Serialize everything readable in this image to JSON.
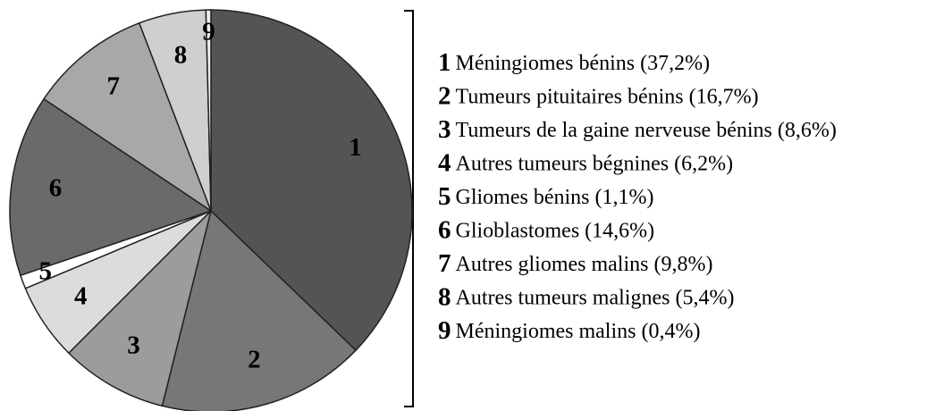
{
  "chart_data": {
    "type": "pie",
    "keys": [
      "1",
      "2",
      "3",
      "4",
      "5",
      "6",
      "7",
      "8",
      "9"
    ],
    "categories": [
      "Méningiomes bénins",
      "Tumeurs pituitaires bénins",
      "Tumeurs de la gaine nerveuse bénins",
      "Autres tumeurs bégnines",
      "Gliomes bénins",
      "Glioblastomes",
      "Autres gliomes malins",
      "Autres tumeurs malignes",
      "Méningiomes malins"
    ],
    "values": [
      37.2,
      16.7,
      8.6,
      6.2,
      1.1,
      14.6,
      9.8,
      5.4,
      0.4
    ],
    "value_labels": [
      "(37,2%)",
      "(16,7%)",
      "(8,6%)",
      "(6,2%)",
      "(1,1%)",
      "(14,6%)",
      "(9,8%)",
      "(5,4%)",
      "(0,4%)"
    ],
    "colors": [
      "#545454",
      "#777777",
      "#9c9c9c",
      "#dcdcdc",
      "#ffffff",
      "#6a6a6a",
      "#a8a8a8",
      "#cfcfcf",
      "#eeeeee"
    ]
  }
}
